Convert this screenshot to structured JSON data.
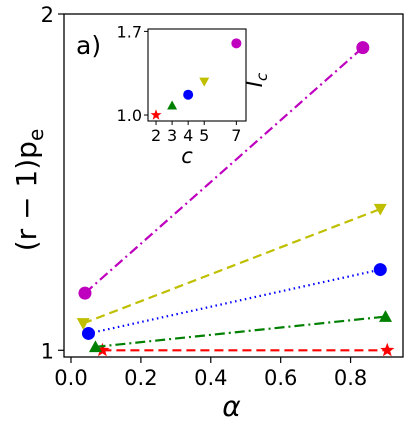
{
  "chart_data": [
    {
      "type": "line",
      "panel_label": "a)",
      "title": "",
      "xlabel": "α",
      "ylabel_main": "(r − 1)p",
      "ylabel_sub": "e",
      "xlim": [
        -0.02,
        0.95
      ],
      "ylim": [
        0.98,
        2.0
      ],
      "xticks": [
        0.0,
        0.2,
        0.4,
        0.6,
        0.8
      ],
      "xtick_labels": [
        "0.0",
        "0.2",
        "0.4",
        "0.6",
        "0.8"
      ],
      "yticks": [
        1,
        2
      ],
      "ytick_labels": [
        "1",
        "2"
      ],
      "grid": false,
      "series": [
        {
          "color": "#ff0000",
          "marker": "star",
          "linestyle": "dashed",
          "x": [
            0.09,
            0.905
          ],
          "y": [
            1.0,
            1.0
          ]
        },
        {
          "color": "#008000",
          "marker": "triangle-up",
          "linestyle": "dashdot",
          "x": [
            0.07,
            0.9
          ],
          "y": [
            1.01,
            1.1
          ]
        },
        {
          "color": "#0000ff",
          "marker": "circle",
          "linestyle": "dotted",
          "x": [
            0.05,
            0.885
          ],
          "y": [
            1.05,
            1.24
          ]
        },
        {
          "color": "#bfbf00",
          "marker": "triangle-down",
          "linestyle": "dashed",
          "x": [
            0.035,
            0.885
          ],
          "y": [
            1.08,
            1.42
          ]
        },
        {
          "color": "#bf00bf",
          "marker": "circle",
          "linestyle": "dashdot",
          "x": [
            0.04,
            0.835
          ],
          "y": [
            1.17,
            1.9
          ]
        }
      ]
    },
    {
      "type": "scatter",
      "inset": true,
      "xlabel": "c",
      "ylabel_main": "I",
      "ylabel_sub": "c",
      "xlim": [
        1.5,
        7.6
      ],
      "ylim": [
        0.95,
        1.72
      ],
      "xtick_labels": [
        "2",
        "3",
        "4",
        "5",
        "7"
      ],
      "xticks": [
        2,
        3,
        4,
        5,
        7
      ],
      "ytick_labels": [
        "1.0",
        "1.7"
      ],
      "yticks": [
        1.0,
        1.7
      ],
      "points": [
        {
          "x": 2,
          "y": 1.0,
          "color": "#ff0000",
          "marker": "star"
        },
        {
          "x": 3,
          "y": 1.08,
          "color": "#008000",
          "marker": "triangle-up"
        },
        {
          "x": 4,
          "y": 1.17,
          "color": "#0000ff",
          "marker": "circle"
        },
        {
          "x": 5,
          "y": 1.28,
          "color": "#bfbf00",
          "marker": "triangle-down"
        },
        {
          "x": 7,
          "y": 1.6,
          "color": "#bf00bf",
          "marker": "circle"
        }
      ]
    }
  ]
}
